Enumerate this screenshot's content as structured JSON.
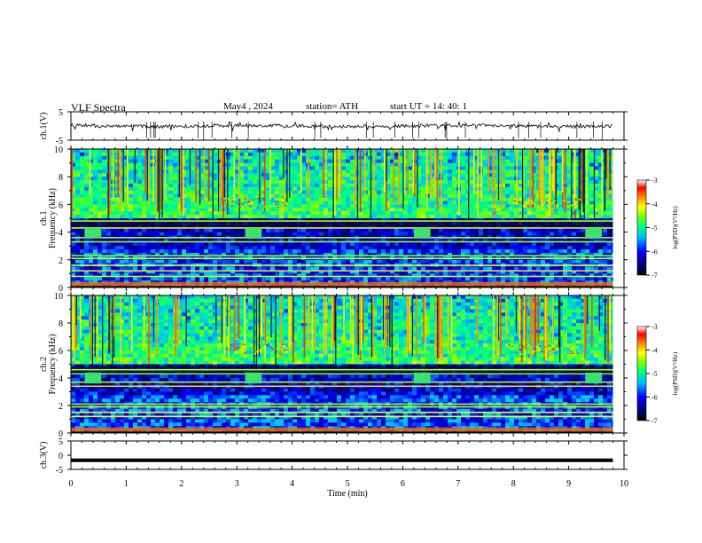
{
  "header": {
    "title": "VLF  Spectra",
    "date": "May4  , 2024",
    "station": "station= ATH",
    "start": "start  UT  =    14: 40: 1"
  },
  "chart_data": [
    {
      "type": "line",
      "ylabel": "ch.1(V)",
      "ylim": [
        -5,
        5
      ],
      "yticks": [
        "5",
        "-5"
      ],
      "baseline_v": 0.0
    },
    {
      "type": "heatmap",
      "ylabel": "ch.1\nFrequency  (kHz)",
      "ylim": [
        0,
        10
      ],
      "yticks": [
        "0",
        "2",
        "4",
        "6",
        "8",
        "10"
      ],
      "colorbar": {
        "label": "log(PSD)(V²/Hz)",
        "range": [
          -7,
          -3
        ],
        "ticks": [
          "-3",
          "-4",
          "-5",
          "-6",
          "-7"
        ]
      },
      "bright_bands_khz": [
        4.8,
        4.3,
        3.6,
        3.3,
        2.3,
        2.1,
        1.6,
        1.2,
        0.8
      ],
      "tone_blobs": [
        {
          "t": [
            0.25,
            0.55
          ],
          "f": [
            3.6,
            4.3
          ]
        },
        {
          "t": [
            3.15,
            3.45
          ],
          "f": [
            3.6,
            4.3
          ]
        },
        {
          "t": [
            6.2,
            6.5
          ],
          "f": [
            3.6,
            4.3
          ]
        },
        {
          "t": [
            9.3,
            9.6
          ],
          "f": [
            3.6,
            4.3
          ]
        }
      ],
      "whistler_bursts": [
        {
          "t": [
            2.75,
            3.9
          ],
          "f": [
            5.8,
            6.6
          ]
        },
        {
          "t": [
            7.9,
            9.2
          ],
          "f": [
            5.8,
            6.5
          ]
        }
      ]
    },
    {
      "type": "heatmap",
      "ylabel": "ch.2\nFrequency  (kHz)",
      "ylim": [
        0,
        10
      ],
      "yticks": [
        "0",
        "2",
        "4",
        "6",
        "8",
        "10"
      ],
      "colorbar": {
        "label": "log(PSD)(V²/Hz)",
        "range": [
          -7,
          -3
        ],
        "ticks": [
          "-3",
          "-4",
          "-5",
          "-6",
          "-7"
        ]
      },
      "bright_bands_khz": [
        4.6,
        4.3,
        3.7,
        3.4,
        2.1,
        1.9,
        1.5,
        1.2
      ],
      "tone_blobs": [
        {
          "t": [
            0.25,
            0.55
          ],
          "f": [
            3.6,
            4.4
          ]
        },
        {
          "t": [
            3.15,
            3.45
          ],
          "f": [
            3.6,
            4.4
          ]
        },
        {
          "t": [
            6.2,
            6.5
          ],
          "f": [
            3.6,
            4.4
          ]
        },
        {
          "t": [
            9.3,
            9.6
          ],
          "f": [
            3.6,
            4.4
          ]
        }
      ],
      "whistler_bursts": [
        {
          "t": [
            2.75,
            3.9
          ],
          "f": [
            5.8,
            6.6
          ]
        },
        {
          "t": [
            7.9,
            9.2
          ],
          "f": [
            5.8,
            6.5
          ]
        }
      ]
    },
    {
      "type": "line",
      "ylabel": "ch.3(V)",
      "ylim": [
        -5,
        5
      ],
      "yticks": [
        "5",
        "0",
        "-5"
      ],
      "baseline_v": -1.8
    }
  ],
  "xaxis": {
    "label": "Time  (min)",
    "range": [
      0,
      10
    ],
    "ticks": [
      "0",
      "1",
      "2",
      "3",
      "4",
      "5",
      "6",
      "7",
      "8",
      "9",
      "10"
    ],
    "data_end_min": 9.8
  },
  "colors": {
    "frame": "#000000",
    "colormap": [
      "#000000",
      "#00008b",
      "#0000ff",
      "#00bfff",
      "#00ff7f",
      "#7fff00",
      "#ffff00",
      "#ff8c00",
      "#ff0000",
      "#ffffff"
    ]
  }
}
